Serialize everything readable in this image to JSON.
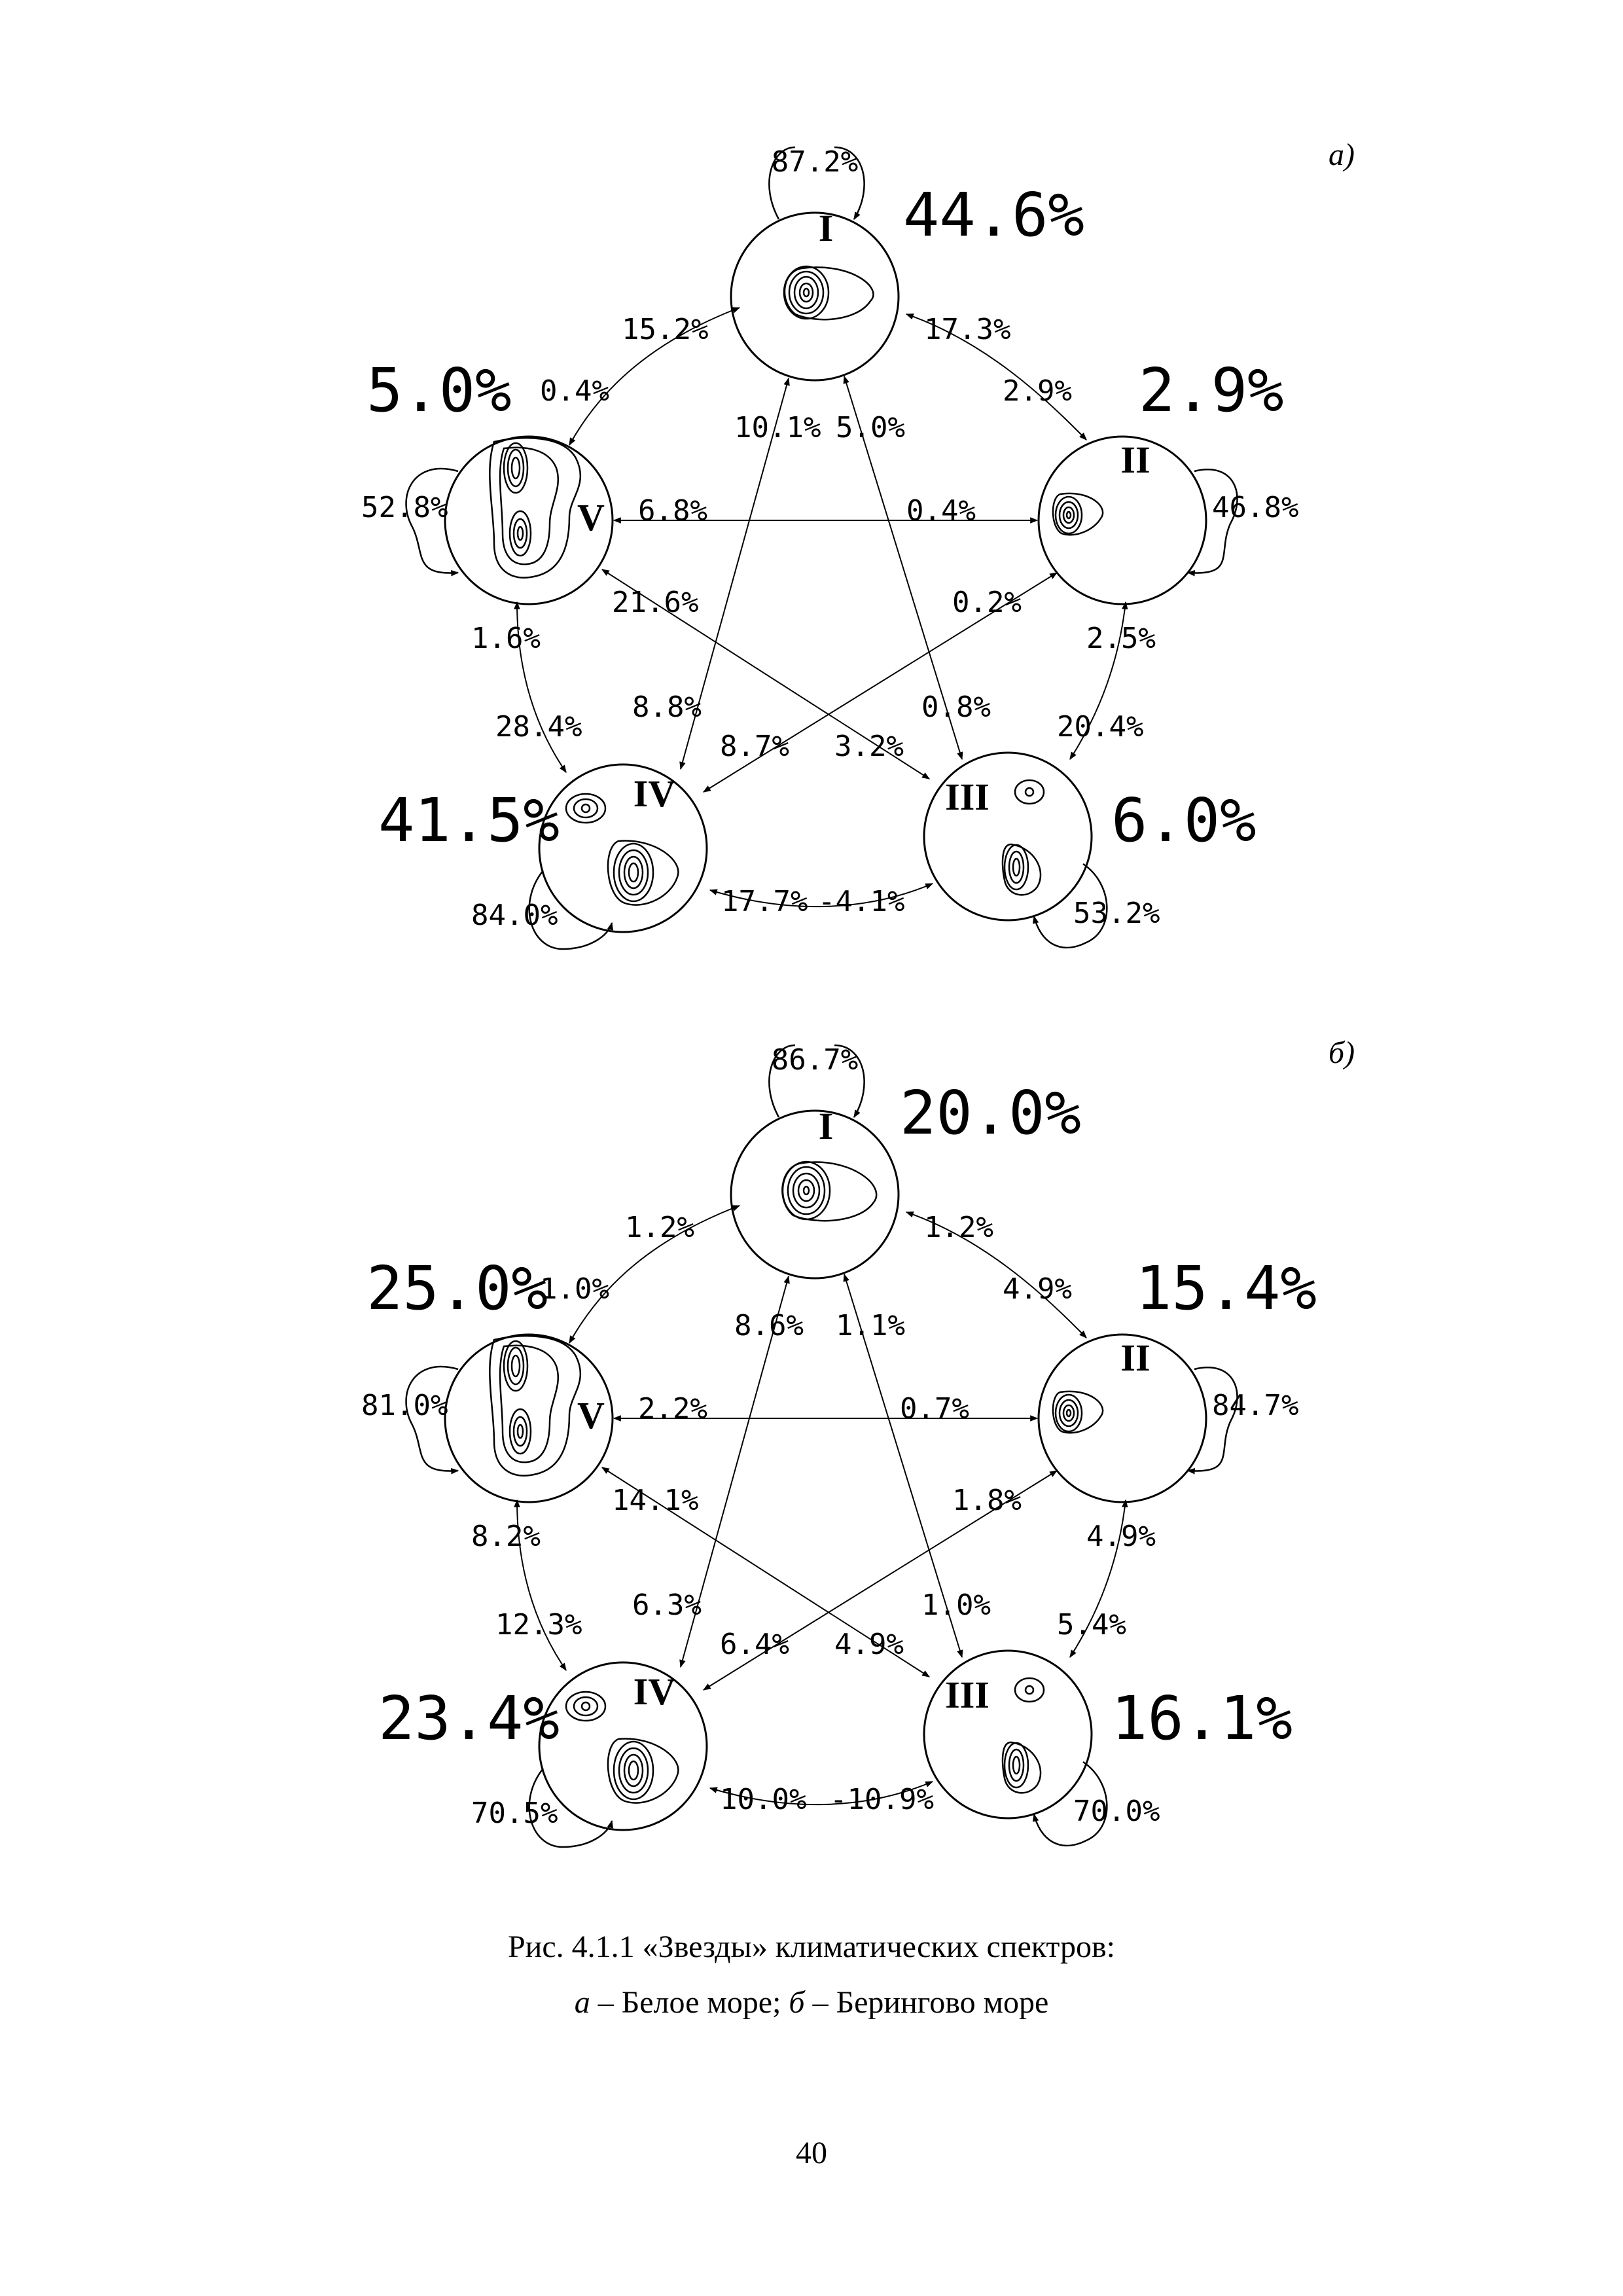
{
  "panels": [
    {
      "tag": "а)",
      "nodes": [
        {
          "numeral": "I",
          "share": "44.6%",
          "self": "87.2%"
        },
        {
          "numeral": "II",
          "share": "2.9%",
          "self": "46.8%"
        },
        {
          "numeral": "III",
          "share": "6.0%",
          "self": "53.2%"
        },
        {
          "numeral": "IV",
          "share": "41.5%",
          "self": "84.0%"
        },
        {
          "numeral": "V",
          "share": "5.0%",
          "self": "52.8%"
        }
      ],
      "transitions": {
        "I_V": "15.2%",
        "V_I": "0.4%",
        "I_II": "17.3%",
        "II_I": "2.9%",
        "II_III": "2.5%",
        "III_II": "20.4%",
        "V_IV": "1.6%",
        "IV_V": "28.4%",
        "IV_III": "17.7%",
        "III_IV": "-4.1%",
        "I_IV": "10.1%",
        "IV_I": "8.8%",
        "I_III": "5.0%",
        "III_I": "0.8%",
        "V_II": "6.8%",
        "II_V": "0.4%",
        "V_III": "21.6%",
        "III_V": "3.2%",
        "II_IV": "0.2%",
        "IV_II": "8.7%"
      }
    },
    {
      "tag": "б)",
      "nodes": [
        {
          "numeral": "I",
          "share": "20.0%",
          "self": "86.7%"
        },
        {
          "numeral": "II",
          "share": "15.4%",
          "self": "84.7%"
        },
        {
          "numeral": "III",
          "share": "16.1%",
          "self": "70.0%"
        },
        {
          "numeral": "IV",
          "share": "23.4%",
          "self": "70.5%"
        },
        {
          "numeral": "V",
          "share": "25.0%",
          "self": "81.0%"
        }
      ],
      "transitions": {
        "I_V": "1.2%",
        "V_I": "1.0%",
        "I_II": "1.2%",
        "II_I": "4.9%",
        "II_III": "4.9%",
        "III_II": "5.4%",
        "V_IV": "8.2%",
        "IV_V": "12.3%",
        "IV_III": "10.0%",
        "III_IV": "-10.9%",
        "I_IV": "8.6%",
        "IV_I": "6.3%",
        "I_III": "1.1%",
        "III_I": "1.0%",
        "V_II": "2.2%",
        "II_V": "0.7%",
        "V_III": "14.1%",
        "III_V": "4.9%",
        "II_IV": "1.8%",
        "IV_II": "6.4%"
      }
    }
  ],
  "caption": {
    "line1": "Рис. 4.1.1 «Звезды» климатических спектров:",
    "line2_a": "а",
    "line2_a_text": " – Белое море; ",
    "line2_b": "б",
    "line2_b_text": " – Берингово море"
  },
  "page_number": "40"
}
